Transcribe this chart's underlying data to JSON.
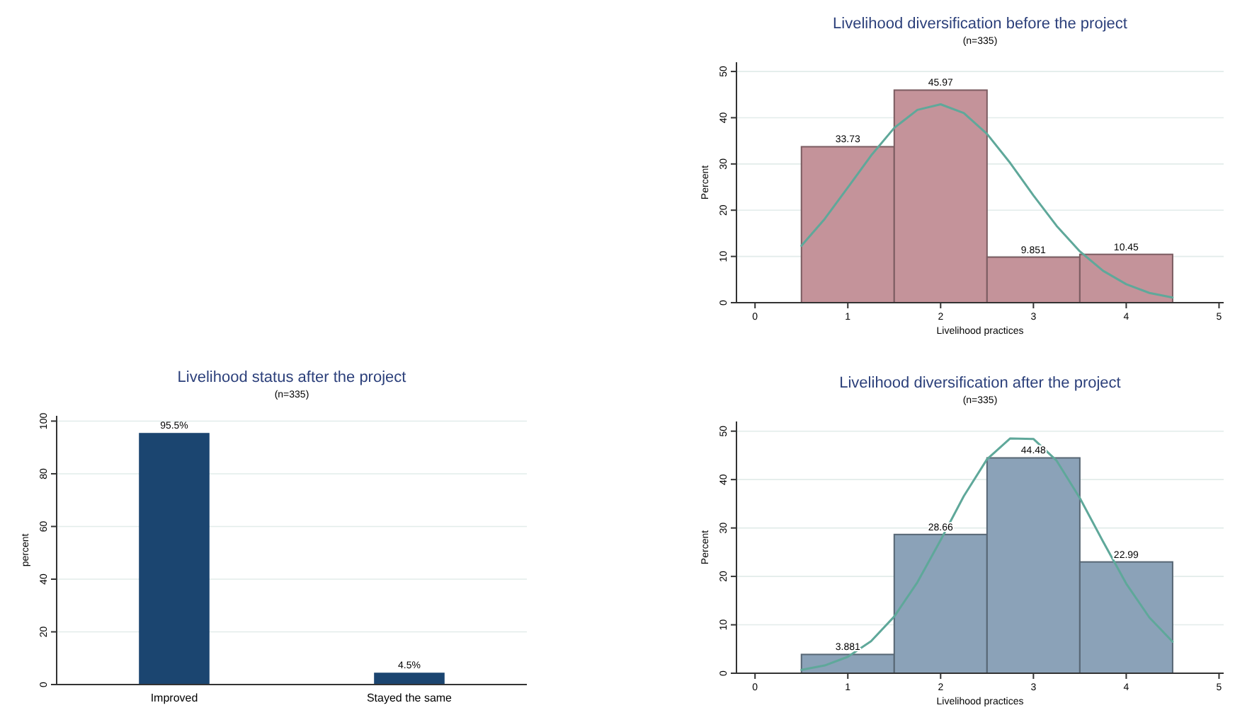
{
  "chart_data": [
    {
      "type": "histogram",
      "title": "Livelihood diversification before the project",
      "subtitle": "(n=335)",
      "xlabel": "Livelihood practices",
      "ylabel": "Percent",
      "bins": [
        0.5,
        1.5,
        2.5,
        3.5,
        4.5
      ],
      "values": [
        33.73,
        45.97,
        9.851,
        10.45
      ],
      "value_labels": [
        "33.73",
        "45.97",
        "9.851",
        "10.45"
      ],
      "color": "#c4939a",
      "xlim": [
        -0.2,
        5.05
      ],
      "xticks": [
        0,
        1,
        2,
        3,
        4,
        5
      ],
      "ylim": [
        0,
        52
      ],
      "yticks": [
        0,
        10,
        20,
        30,
        40,
        50
      ],
      "grid": "y",
      "series": [
        {
          "type": "line",
          "color": "#5fa89a",
          "x": [
            0.5,
            0.75,
            1,
            1.25,
            1.5,
            1.75,
            2,
            2.25,
            2.5,
            2.75,
            3,
            3.25,
            3.5,
            3.75,
            4,
            4.25,
            4.5
          ],
          "values": [
            12.3,
            18.1,
            24.9,
            31.8,
            37.8,
            41.7,
            42.9,
            41.0,
            36.5,
            30.2,
            23.2,
            16.6,
            11.1,
            6.9,
            4.0,
            2.1,
            1.1
          ]
        }
      ]
    },
    {
      "type": "bar",
      "title": "Livelihood status after the project",
      "subtitle": "(n=335)",
      "ylabel": "percent",
      "categories": [
        "Improved",
        "Stayed the same"
      ],
      "values": [
        95.5,
        4.5
      ],
      "value_labels": [
        "95.5%",
        "4.5%"
      ],
      "color": "#1b4570",
      "ylim": [
        0,
        102
      ],
      "yticks": [
        0,
        20,
        40,
        60,
        80,
        100
      ],
      "grid": "y"
    },
    {
      "type": "histogram",
      "title": "Livelihood diversification after the project",
      "subtitle": "(n=335)",
      "xlabel": "Livelihood practices",
      "ylabel": "Percent",
      "bins": [
        0.5,
        1.5,
        2.5,
        3.5,
        4.5
      ],
      "values": [
        3.881,
        28.66,
        44.48,
        22.99
      ],
      "value_labels": [
        "3.881",
        "28.66",
        "44.48",
        "22.99"
      ],
      "color": "#8ba2b8",
      "xlim": [
        -0.2,
        5.05
      ],
      "xticks": [
        0,
        1,
        2,
        3,
        4,
        5
      ],
      "ylim": [
        0,
        52
      ],
      "yticks": [
        0,
        10,
        20,
        30,
        40,
        50
      ],
      "grid": "y",
      "series": [
        {
          "type": "line",
          "color": "#5fa89a",
          "x": [
            0.5,
            0.75,
            1,
            1.25,
            1.5,
            1.75,
            2,
            2.25,
            2.5,
            2.75,
            3,
            3.25,
            3.5,
            3.75,
            4,
            4.25,
            4.5
          ],
          "values": [
            0.7,
            1.6,
            3.4,
            6.6,
            11.7,
            18.8,
            27.5,
            36.6,
            44.2,
            48.5,
            48.4,
            43.9,
            36.2,
            27.2,
            18.5,
            11.5,
            6.5
          ]
        }
      ]
    }
  ]
}
